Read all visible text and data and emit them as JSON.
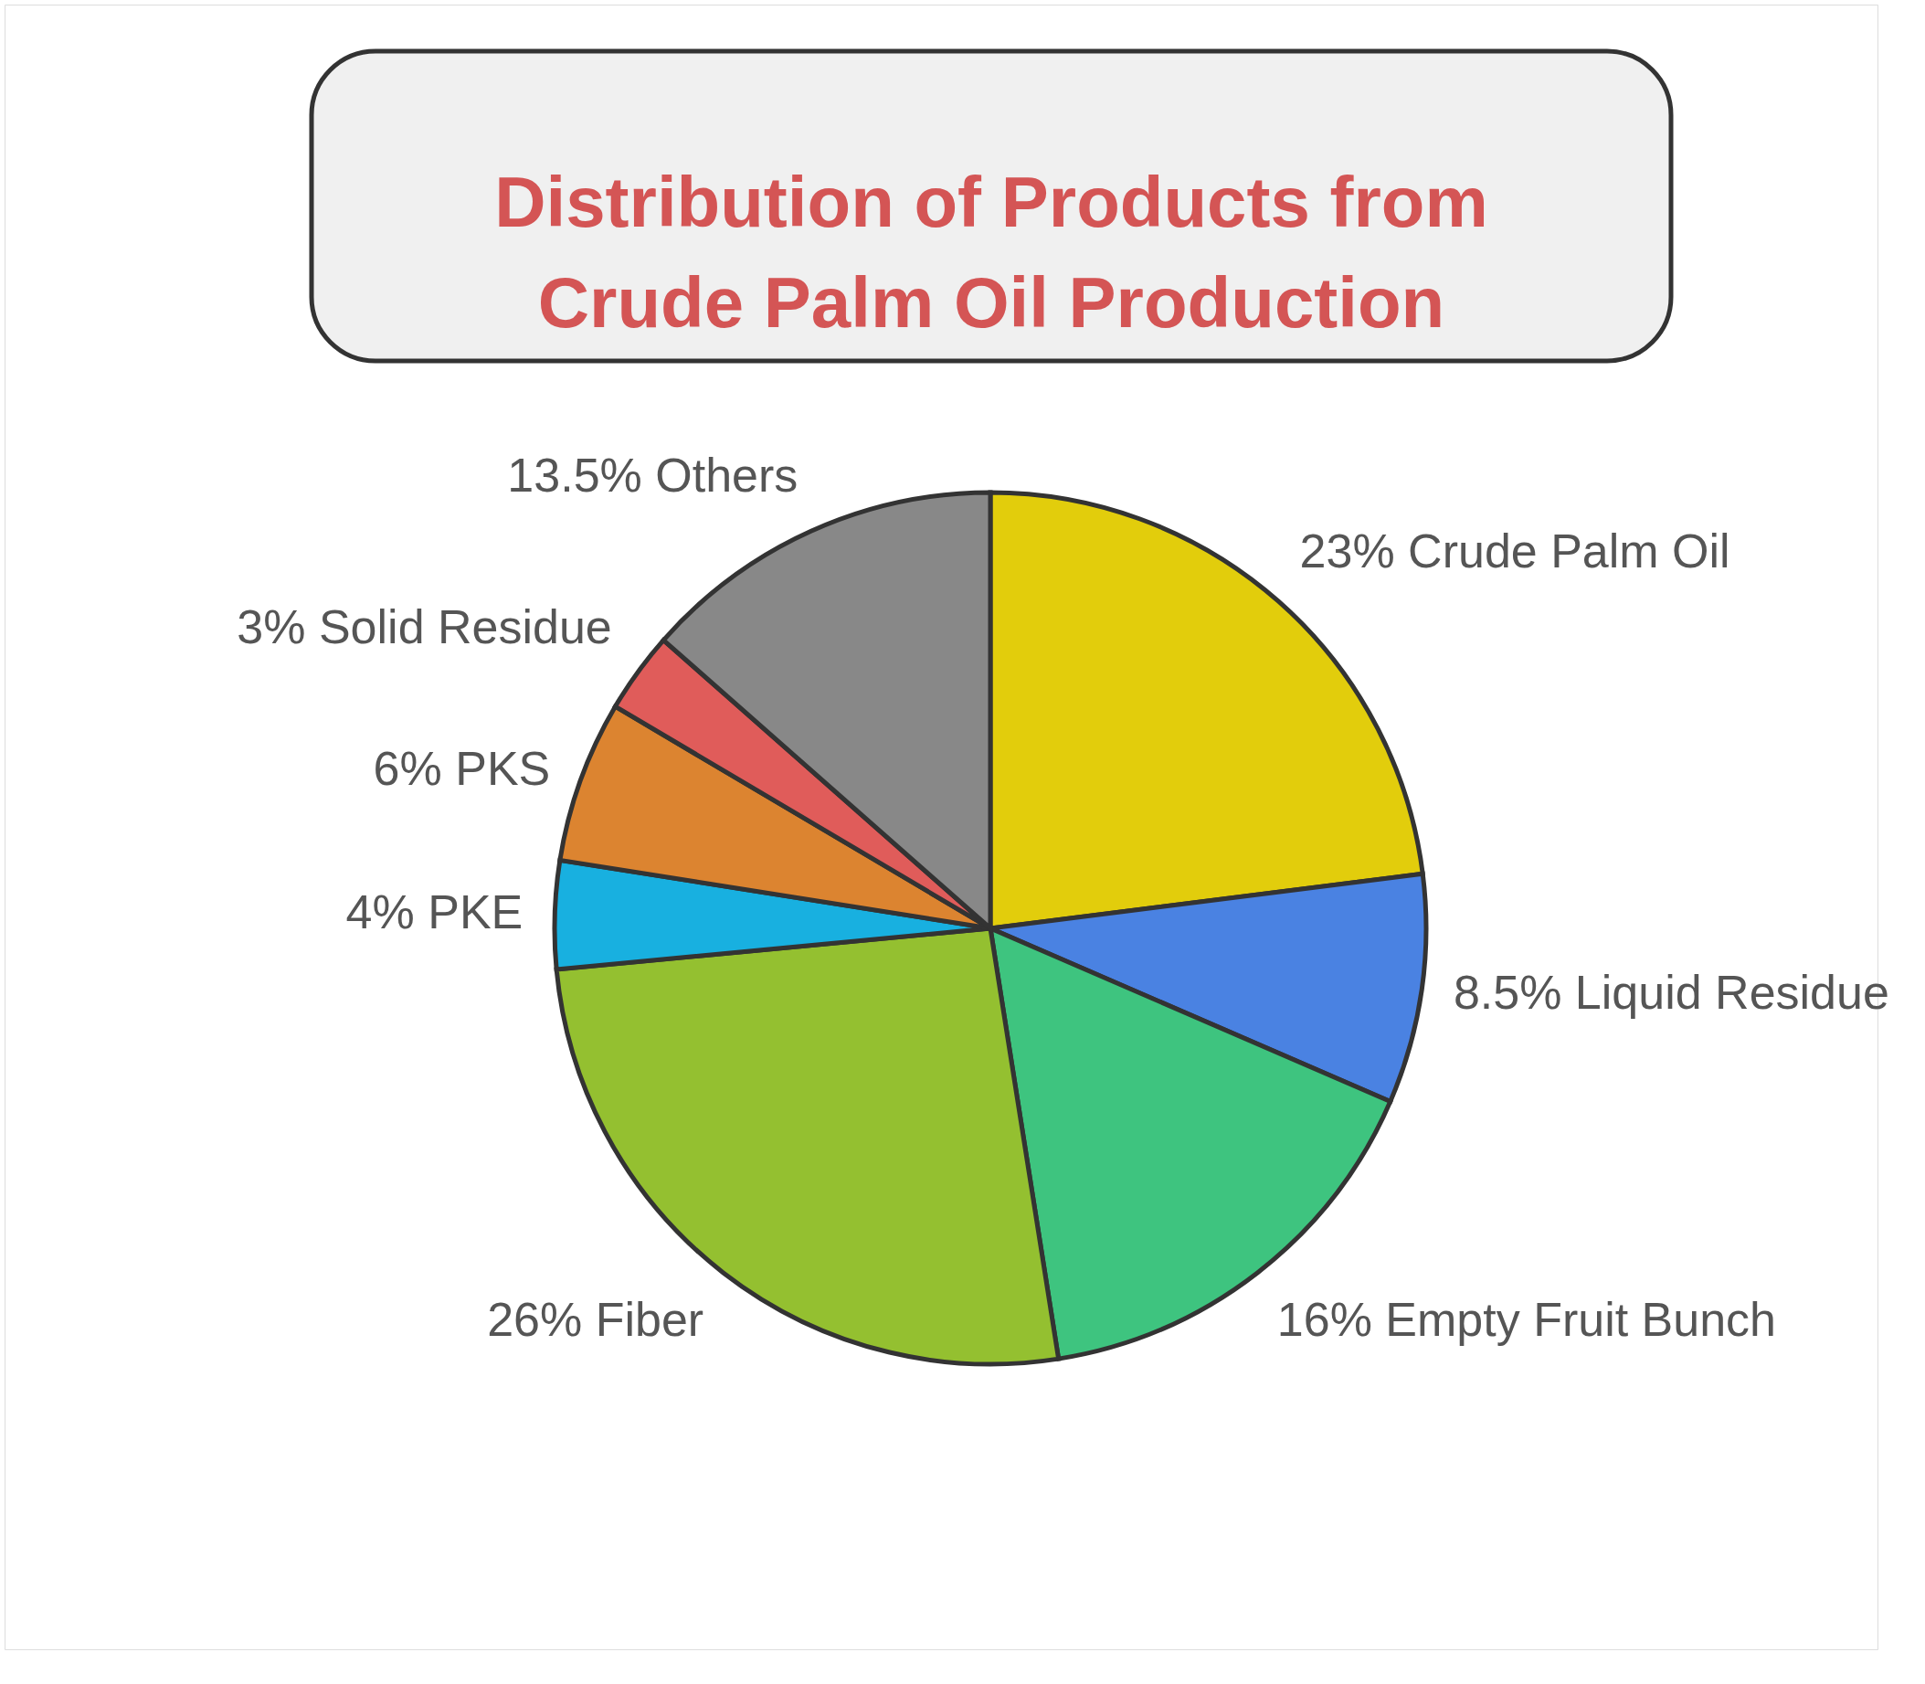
{
  "chart_data": {
    "type": "pie",
    "title": "Distribution of Products from Crude Palm Oil Production",
    "categories": [
      "Crude Palm Oil",
      "Liquid Residue",
      "Empty Fruit Bunch",
      "Fiber",
      "PKE",
      "PKS",
      "Solid Residue",
      "Others"
    ],
    "values": [
      23,
      8.5,
      16,
      26,
      4,
      6,
      3,
      13.5
    ],
    "value_labels": [
      "23%",
      "8.5%",
      "16%",
      "26%",
      "4%",
      "6%",
      "3%",
      "13.5%"
    ],
    "colors": [
      "#e2cd0c",
      "#4a82e2",
      "#3ec47f",
      "#94c030",
      "#18b0e0",
      "#dc8430",
      "#e05c5a",
      "#888888"
    ]
  }
}
